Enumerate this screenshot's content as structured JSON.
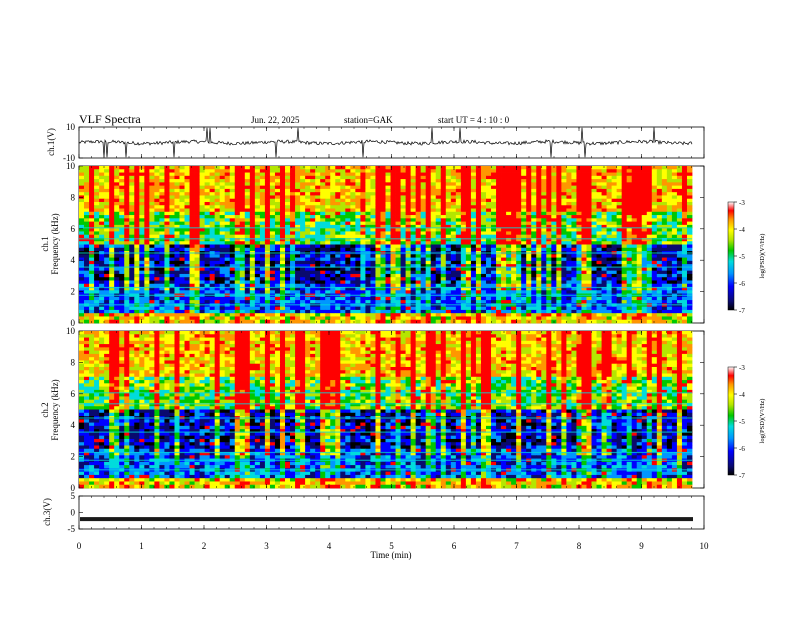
{
  "header": {
    "title": "VLF  Spectra",
    "date": "Jun. 22, 2025",
    "station": "station=GAK",
    "start": "start  UT =   4 : 10 : 0"
  },
  "colors": {
    "spectrum_scale": [
      "#000000",
      "#0a0a6e",
      "#0000ff",
      "#0096ff",
      "#00dcdc",
      "#00c800",
      "#b4e600",
      "#ffff00",
      "#ff9600",
      "#ff0000",
      "#ffffff"
    ]
  },
  "chart_data": [
    {
      "type": "line",
      "name": "ch1-waveform",
      "ylabel": "ch.1(V)",
      "ylim": [
        -10,
        10
      ],
      "yticks": [
        "10",
        "-10"
      ],
      "xlim": [
        0,
        10
      ],
      "baseline": 0,
      "spike_times_min": [
        0.4,
        0.45,
        0.75,
        1.45,
        1.52,
        2.05,
        2.1,
        2.95,
        3.15,
        3.5,
        4.2,
        4.55,
        5.0,
        5.65,
        6.1,
        7.55,
        8.05,
        8.1,
        9.2
      ]
    },
    {
      "type": "heatmap",
      "name": "ch1-spectrogram",
      "ylabel": "ch.1\nFrequency  (kHz)",
      "xlim": [
        0,
        10
      ],
      "ylim": [
        0,
        10
      ],
      "yticks": [
        "0",
        "2",
        "4",
        "6",
        "8",
        "10"
      ],
      "colorbar": {
        "label": "log(PSD)(V²/Hz)",
        "range": [
          -7,
          -3
        ],
        "ticks": [
          "-3",
          "-4",
          "-5",
          "-6",
          "-7"
        ]
      }
    },
    {
      "type": "heatmap",
      "name": "ch2-spectrogram",
      "ylabel": "ch.2\nFrequency  (kHz)",
      "xlim": [
        0,
        10
      ],
      "ylim": [
        0,
        10
      ],
      "yticks": [
        "0",
        "2",
        "4",
        "6",
        "8",
        "10"
      ],
      "colorbar": {
        "label": "log(PSD)(V²/Hz)",
        "range": [
          -7,
          -3
        ],
        "ticks": [
          "-3",
          "-4",
          "-5",
          "-6",
          "-7"
        ]
      }
    },
    {
      "type": "line",
      "name": "ch3-waveform",
      "ylabel": "ch.3(V)",
      "ylim": [
        -5,
        5
      ],
      "yticks": [
        "5",
        "0",
        "-5"
      ],
      "xlim": [
        0,
        10
      ],
      "baseline": -2
    }
  ],
  "xaxis": {
    "label": "Time  (min)",
    "ticks": [
      "0",
      "1",
      "2",
      "3",
      "4",
      "5",
      "6",
      "7",
      "8",
      "9",
      "10"
    ]
  }
}
